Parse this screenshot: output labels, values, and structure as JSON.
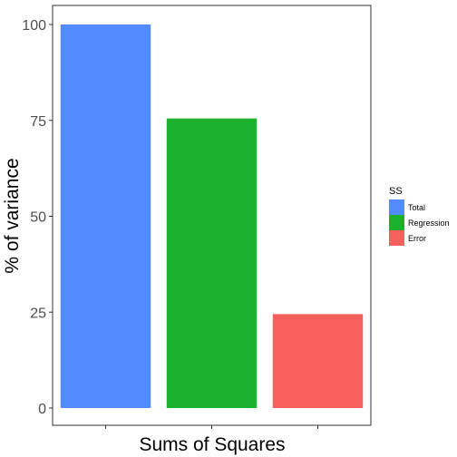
{
  "chart_data": {
    "type": "bar",
    "categories": [
      "Total",
      "Regression",
      "Error"
    ],
    "values": [
      100,
      75.5,
      24.5
    ],
    "colors": [
      "#518BFF",
      "#1BB12F",
      "#F5605C"
    ],
    "xlabel": "Sums of Squares",
    "ylabel": "% of variance",
    "ylim": [
      0,
      100
    ],
    "yticks": [
      0,
      25,
      50,
      75,
      100
    ],
    "ytick_labels": [
      "0",
      "25",
      "50",
      "75",
      "100"
    ],
    "grid": false,
    "legend": {
      "title": "SS",
      "position": "right",
      "entries": [
        "Total",
        "Regression",
        "Error"
      ]
    }
  }
}
